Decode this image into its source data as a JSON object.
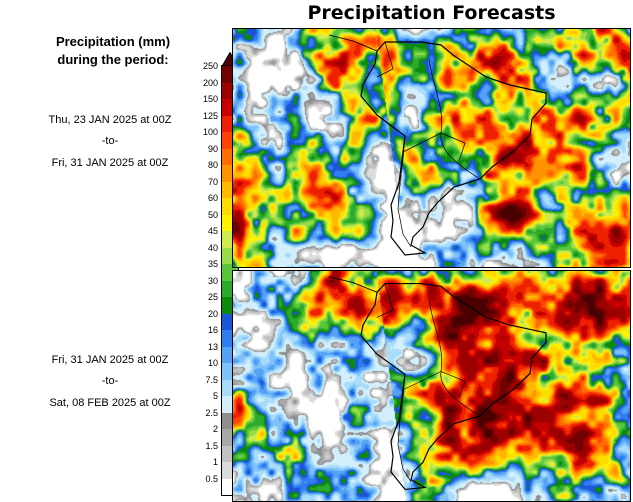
{
  "title": "Precipitation Forecasts",
  "sidebar": {
    "legend_title_line1": "Precipitation (mm)",
    "legend_title_line2": "during the period:",
    "periods": [
      {
        "from": "Thu, 23 JAN 2025 at 00Z",
        "separator": "-to-",
        "to": "Fri, 31 JAN 2025 at 00Z"
      },
      {
        "from": "Fri, 31 JAN 2025 at 00Z",
        "separator": "-to-",
        "to": "Sat, 08 FEB 2025 at 00Z"
      }
    ]
  },
  "colorbar": {
    "unit": "mm",
    "tick_labels": [
      "250",
      "200",
      "150",
      "125",
      "100",
      "90",
      "80",
      "70",
      "60",
      "50",
      "45",
      "40",
      "35",
      "30",
      "25",
      "20",
      "16",
      "13",
      "10",
      "7.5",
      "5",
      "2.5",
      "2",
      "1.5",
      "1",
      "0.5"
    ],
    "segment_colors_top_to_bottom": [
      "#4a0000",
      "#710000",
      "#9c0000",
      "#c40000",
      "#ed2000",
      "#ff4300",
      "#ff6e00",
      "#ff9400",
      "#ffb900",
      "#ffdc00",
      "#fef200",
      "#cdeb4e",
      "#98dc46",
      "#59c63b",
      "#2daa2d",
      "#0c8a0c",
      "#1b56d7",
      "#2f7df0",
      "#55a2f5",
      "#7fc2fa",
      "#a8dcfb",
      "#d2effb",
      "#8f8f8f",
      "#a8a8a8",
      "#c2c2c2",
      "#dcdcdc",
      "#ffffff"
    ]
  },
  "chart_data": {
    "type": "heatmap",
    "title": "Precipitation Forecasts",
    "unit": "mm",
    "scale_values_mm": [
      0.5,
      1,
      1.5,
      2,
      2.5,
      5,
      7.5,
      10,
      13,
      16,
      20,
      25,
      30,
      35,
      40,
      45,
      50,
      60,
      70,
      80,
      90,
      100,
      125,
      150,
      200,
      250
    ],
    "panels": [
      {
        "period_start": "Thu, 23 JAN 2025 at 00Z",
        "period_end": "Fri, 31 JAN 2025 at 00Z"
      },
      {
        "period_start": "Fri, 31 JAN 2025 at 00Z",
        "period_end": "Sat, 08 FEB 2025 at 00Z"
      }
    ]
  }
}
